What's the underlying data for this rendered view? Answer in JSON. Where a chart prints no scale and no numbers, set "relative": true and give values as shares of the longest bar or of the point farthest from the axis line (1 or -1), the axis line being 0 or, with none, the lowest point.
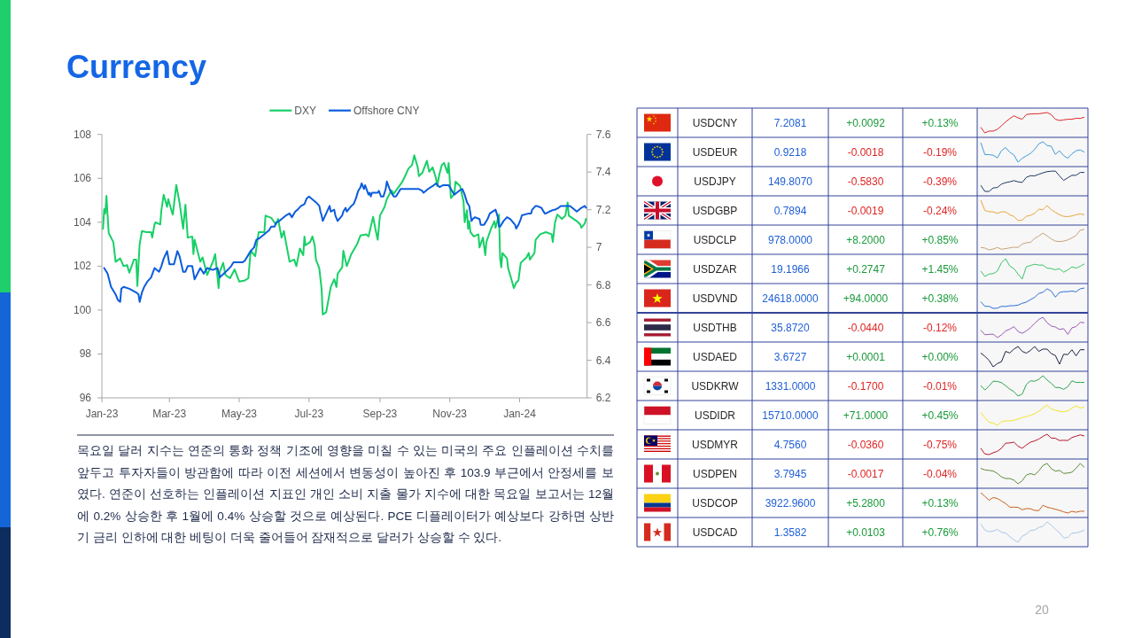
{
  "chart_data": [
    {
      "type": "line",
      "title": "Currency",
      "xlim": [
        "2023-01-01",
        "2024-02-29"
      ],
      "xticks": [
        {
          "value": "2023-01-01",
          "label": "Jan-23"
        },
        {
          "value": "2023-03-01",
          "label": "Mar-23"
        },
        {
          "value": "2023-05-01",
          "label": "May-23"
        },
        {
          "value": "2023-07-01",
          "label": "Jul-23"
        },
        {
          "value": "2023-09-01",
          "label": "Sep-23"
        },
        {
          "value": "2023-11-01",
          "label": "Nov-23"
        },
        {
          "value": "2024-01-01",
          "label": "Jan-24"
        }
      ],
      "ylim": [
        96,
        108
      ],
      "yticks": [
        96,
        98,
        100,
        102,
        104,
        106,
        108
      ],
      "y2lim": [
        6.2,
        7.6
      ],
      "y2ticks": [
        6.2,
        6.4,
        6.6,
        6.8,
        7,
        7.2,
        7.4,
        7.6
      ],
      "legend": "top",
      "series": [
        {
          "name": "DXY",
          "color": "#17d066",
          "x": [
            "2023-01-02",
            "2023-01-03",
            "2023-01-04",
            "2023-01-05",
            "2023-01-06",
            "2023-01-07",
            "2023-01-10",
            "2023-01-11",
            "2023-01-13",
            "2023-01-17",
            "2023-01-20",
            "2023-01-23",
            "2023-01-25",
            "2023-01-29",
            "2023-01-31",
            "2023-02-01",
            "2023-02-03",
            "2023-02-05",
            "2023-02-09",
            "2023-02-13",
            "2023-02-14",
            "2023-02-16",
            "2023-02-17",
            "2023-02-21",
            "2023-02-22",
            "2023-02-24",
            "2023-02-27",
            "2023-02-28",
            "2023-03-03",
            "2023-03-04",
            "2023-03-07",
            "2023-03-10",
            "2023-03-13",
            "2023-03-15",
            "2023-03-17",
            "2023-03-21",
            "2023-03-22",
            "2023-03-23",
            "2023-03-28",
            "2023-03-30",
            "2023-04-03",
            "2023-04-08",
            "2023-04-10",
            "2023-04-13",
            "2023-04-14",
            "2023-04-17",
            "2023-04-19",
            "2023-04-23",
            "2023-04-27",
            "2023-05-01",
            "2023-05-06",
            "2023-05-09",
            "2023-05-11",
            "2023-05-15",
            "2023-05-18",
            "2023-05-23",
            "2023-05-24",
            "2023-05-29",
            "2023-06-02",
            "2023-06-04",
            "2023-06-07",
            "2023-06-09",
            "2023-06-14",
            "2023-06-18",
            "2023-06-20",
            "2023-06-23",
            "2023-06-26",
            "2023-06-27",
            "2023-06-28",
            "2023-07-02",
            "2023-07-04",
            "2023-07-06",
            "2023-07-07",
            "2023-07-10",
            "2023-07-12",
            "2023-07-13",
            "2023-07-16",
            "2023-07-20",
            "2023-07-23",
            "2023-07-25",
            "2023-07-26",
            "2023-07-30",
            "2023-07-31",
            "2023-08-03",
            "2023-08-07",
            "2023-08-12",
            "2023-08-15",
            "2023-08-20",
            "2023-08-22",
            "2023-08-26",
            "2023-08-28",
            "2023-08-30",
            "2023-09-01",
            "2023-09-05",
            "2023-09-07",
            "2023-09-11",
            "2023-09-13",
            "2023-09-20",
            "2023-09-22",
            "2023-09-26",
            "2023-09-29",
            "2023-10-01",
            "2023-10-04",
            "2023-10-05",
            "2023-10-08",
            "2023-10-12",
            "2023-10-14",
            "2023-10-17",
            "2023-10-20",
            "2023-10-21",
            "2023-10-23",
            "2023-10-25",
            "2023-10-27",
            "2023-10-30",
            "2023-10-31",
            "2023-11-02",
            "2023-11-05",
            "2023-11-06",
            "2023-11-10",
            "2023-11-13",
            "2023-11-14",
            "2023-11-16",
            "2023-11-17",
            "2023-11-18",
            "2023-11-19",
            "2023-11-22",
            "2023-11-26",
            "2023-11-27",
            "2023-11-30",
            "2023-12-02",
            "2023-12-03",
            "2023-12-07",
            "2023-12-10",
            "2023-12-11",
            "2023-12-14",
            "2023-12-15",
            "2023-12-16",
            "2023-12-17",
            "2023-12-21",
            "2023-12-22",
            "2023-12-24",
            "2023-12-27",
            "2023-12-29",
            "2023-12-31",
            "2024-01-02",
            "2024-01-07",
            "2024-01-09",
            "2024-01-10",
            "2024-01-14",
            "2024-01-15",
            "2024-01-19",
            "2024-01-24",
            "2024-01-29",
            "2024-01-30",
            "2024-01-31",
            "2024-02-01",
            "2024-02-03",
            "2024-02-07",
            "2024-02-10",
            "2024-02-12",
            "2024-02-13",
            "2024-02-20",
            "2024-02-23",
            "2024-02-24",
            "2024-02-27",
            "2024-02-28"
          ],
          "values": [
            103.7,
            104.6,
            104.4,
            105.2,
            104.3,
            103.5,
            103.2,
            103.1,
            102.2,
            102.35,
            102.0,
            102.05,
            101.7,
            102.3,
            102.3,
            101.1,
            103.0,
            103.6,
            103.55,
            103.55,
            103.3,
            103.9,
            104.0,
            103.9,
            104.55,
            105.25,
            104.7,
            105.05,
            104.5,
            104.35,
            105.7,
            104.85,
            103.7,
            104.8,
            103.3,
            103.35,
            102.55,
            103.2,
            102.2,
            102.4,
            101.6,
            102.2,
            102.55,
            101.0,
            101.75,
            102.15,
            101.6,
            101.45,
            101.85,
            101.3,
            101.35,
            101.45,
            102.7,
            102.45,
            103.55,
            103.55,
            104.3,
            104.2,
            103.9,
            104.15,
            103.3,
            103.6,
            102.2,
            102.3,
            102.0,
            102.8,
            102.5,
            103.35,
            102.95,
            103.1,
            103.35,
            102.95,
            102.3,
            101.9,
            100.95,
            99.8,
            99.9,
            101.05,
            101.4,
            101.05,
            101.65,
            101.95,
            102.7,
            102.0,
            102.55,
            103.0,
            103.4,
            103.45,
            103.35,
            104.25,
            103.7,
            103.2,
            104.3,
            104.7,
            105.05,
            105.45,
            105.3,
            105.8,
            106.0,
            106.45,
            106.6,
            107.05,
            106.5,
            106.1,
            106.25,
            106.8,
            106.3,
            106.5,
            106.0,
            105.65,
            106.2,
            106.6,
            106.7,
            106.25,
            106.7,
            105.1,
            105.3,
            105.85,
            105.65,
            104.95,
            104.0,
            104.55,
            103.7,
            104.05,
            103.55,
            103.35,
            103.45,
            102.85,
            103.3,
            102.5,
            103.1,
            103.7,
            104.05,
            103.75,
            104.35,
            102.35,
            101.95,
            102.6,
            102.35,
            101.9,
            101.55,
            101.0,
            101.25,
            101.35,
            102.15,
            102.4,
            102.6,
            102.3,
            102.6,
            103.2,
            103.45,
            103.55,
            103.45,
            103.1,
            103.55,
            104.0,
            104.35,
            104.15,
            104.3,
            104.9,
            104.3,
            104.05,
            103.9,
            103.75,
            103.95,
            104.15
          ]
        },
        {
          "name": "Offshore CNY",
          "color": "#0b5cdd",
          "axis": "y2",
          "x": [
            "2023-01-03",
            "2023-01-06",
            "2023-01-09",
            "2023-01-13",
            "2023-01-15",
            "2023-01-17",
            "2023-01-18",
            "2023-01-20",
            "2023-01-25",
            "2023-01-31",
            "2023-02-02",
            "2023-02-03",
            "2023-02-05",
            "2023-02-07",
            "2023-02-10",
            "2023-02-13",
            "2023-02-16",
            "2023-02-20",
            "2023-02-22",
            "2023-02-24",
            "2023-02-27",
            "2023-03-01",
            "2023-03-05",
            "2023-03-08",
            "2023-03-10",
            "2023-03-13",
            "2023-03-15",
            "2023-03-17",
            "2023-03-21",
            "2023-03-23",
            "2023-03-28",
            "2023-03-31",
            "2023-04-03",
            "2023-04-08",
            "2023-04-12",
            "2023-04-14",
            "2023-04-21",
            "2023-04-24",
            "2023-04-26",
            "2023-05-04",
            "2023-05-06",
            "2023-05-09",
            "2023-05-11",
            "2023-05-14",
            "2023-05-16",
            "2023-05-19",
            "2023-05-23",
            "2023-05-27",
            "2023-05-29",
            "2023-06-01",
            "2023-06-02",
            "2023-06-05",
            "2023-06-07",
            "2023-06-11",
            "2023-06-14",
            "2023-06-16",
            "2023-06-19",
            "2023-06-21",
            "2023-06-24",
            "2023-06-27",
            "2023-06-29",
            "2023-07-01",
            "2023-07-03",
            "2023-07-07",
            "2023-07-10",
            "2023-07-11",
            "2023-07-12",
            "2023-07-13",
            "2023-07-16",
            "2023-07-19",
            "2023-07-20",
            "2023-07-23",
            "2023-07-24",
            "2023-07-26",
            "2023-07-30",
            "2023-07-31",
            "2023-08-02",
            "2023-08-03",
            "2023-08-07",
            "2023-08-09",
            "2023-08-11",
            "2023-08-12",
            "2023-08-13",
            "2023-08-15",
            "2023-08-16",
            "2023-08-18",
            "2023-08-19",
            "2023-08-22",
            "2023-08-23",
            "2023-08-24",
            "2023-08-25",
            "2023-08-30",
            "2023-08-31",
            "2023-09-02",
            "2023-09-04",
            "2023-09-06",
            "2023-09-07",
            "2023-09-10",
            "2023-09-13",
            "2023-09-15",
            "2023-09-19",
            "2023-09-25",
            "2023-10-05",
            "2023-10-08",
            "2023-10-09",
            "2023-10-11",
            "2023-10-13",
            "2023-10-18",
            "2023-10-20",
            "2023-10-23",
            "2023-10-26",
            "2023-10-29",
            "2023-10-31",
            "2023-11-03",
            "2023-11-05",
            "2023-11-09",
            "2023-11-12",
            "2023-11-14",
            "2023-11-15",
            "2023-11-16",
            "2023-11-18",
            "2023-11-19",
            "2023-11-20",
            "2023-11-21",
            "2023-11-23",
            "2023-11-27",
            "2023-11-28",
            "2023-11-29",
            "2023-12-01",
            "2023-12-04",
            "2023-12-06",
            "2023-12-11",
            "2023-12-13",
            "2023-12-14",
            "2023-12-15",
            "2023-12-18",
            "2023-12-21",
            "2023-12-24",
            "2023-12-28",
            "2023-12-29",
            "2023-12-31",
            "2024-01-02",
            "2024-01-03",
            "2024-01-09",
            "2024-01-11",
            "2024-01-12",
            "2024-01-15",
            "2024-01-16",
            "2024-01-20",
            "2024-01-23",
            "2024-01-24",
            "2024-01-27",
            "2024-01-31",
            "2024-02-01",
            "2024-02-04",
            "2024-02-06",
            "2024-02-14",
            "2024-02-16",
            "2024-02-20",
            "2024-02-24",
            "2024-02-27",
            "2024-02-28"
          ],
          "values": [
            6.89,
            6.86,
            6.79,
            6.75,
            6.72,
            6.71,
            6.78,
            6.79,
            6.78,
            6.76,
            6.75,
            6.71,
            6.76,
            6.79,
            6.82,
            6.84,
            6.89,
            6.87,
            6.9,
            6.94,
            6.98,
            6.91,
            6.91,
            6.98,
            6.95,
            6.87,
            6.87,
            6.9,
            6.9,
            6.83,
            6.89,
            6.86,
            6.89,
            6.88,
            6.89,
            6.84,
            6.88,
            6.9,
            6.92,
            6.92,
            6.93,
            6.96,
            6.98,
            7.0,
            7.04,
            7.05,
            7.07,
            7.09,
            7.11,
            7.11,
            7.13,
            7.14,
            7.15,
            7.17,
            7.18,
            7.16,
            7.19,
            7.2,
            7.22,
            7.23,
            7.26,
            7.27,
            7.26,
            7.24,
            7.22,
            7.19,
            7.17,
            7.14,
            7.18,
            7.22,
            7.19,
            7.2,
            7.17,
            7.14,
            7.17,
            7.19,
            7.21,
            7.19,
            7.22,
            7.23,
            7.26,
            7.28,
            7.3,
            7.32,
            7.34,
            7.31,
            7.33,
            7.28,
            7.29,
            7.27,
            7.29,
            7.29,
            7.3,
            7.27,
            7.27,
            7.31,
            7.35,
            7.3,
            7.27,
            7.27,
            7.31,
            7.31,
            7.31,
            7.3,
            7.29,
            7.3,
            7.31,
            7.33,
            7.34,
            7.32,
            7.33,
            7.33,
            7.33,
            7.3,
            7.28,
            7.3,
            7.31,
            7.28,
            7.26,
            7.24,
            7.22,
            7.18,
            7.14,
            7.15,
            7.16,
            7.15,
            7.12,
            7.12,
            7.12,
            7.15,
            7.18,
            7.2,
            7.16,
            7.11,
            7.11,
            7.14,
            7.16,
            7.15,
            7.12,
            7.1,
            7.12,
            7.15,
            7.17,
            7.18,
            7.18,
            7.2,
            7.22,
            7.22,
            7.21,
            7.18,
            7.18,
            7.19,
            7.2,
            7.2,
            7.21,
            7.22,
            7.22,
            7.21,
            7.19,
            7.21,
            7.22,
            7.21
          ]
        }
      ],
      "annotations": [
        "목요일 달러 지수는 연준의 통화 정책 기조에 영향을 미칠 수 있는 미국의 주요 인플레이션 수치를 앞두고 투자자들이 방관함에 따라 이전 세션에서 변동성이 높아진 후 103.9 부근에서 안정세를 보였다. 연준이 선호하는 인플레이션 지표인 개인 소비 지출 물가 지수에 대한 목요일 보고서는 12월에 0.2% 상승한 후 1월에 0.4% 상승할 것으로 예상된다. PCE 디플레이터가 예상보다 강하면 상반기 금리 인하에 대한 베팅이 더욱 줄어들어 잠재적으로 달러가 상승할 수 있다.",
        "20"
      ]
    },
    {
      "type": "other",
      "categories": [
        "USDCNY",
        "USDEUR",
        "USDJPY",
        "USDGBP",
        "USDCLP",
        "USDZAR",
        "USDVND",
        "USDTHB",
        "USDAED",
        "USDKRW",
        "USDIDR",
        "USDMYR",
        "USDPEN",
        "USDCOP",
        "USDCAD"
      ],
      "series": [
        {
          "color": "#1f5fd6",
          "values": [
            7.2081,
            0.9218,
            149.807,
            0.7894,
            978,
            19.1966,
            24618,
            35.872,
            3.6727,
            1331,
            15710,
            4.756,
            3.7945,
            3922.96,
            1.3582
          ],
          "value_labels": [
            "7.2081",
            "0.9218",
            "149.8070",
            "0.7894",
            "978.0000",
            "19.1966",
            "24618.0000",
            "35.8720",
            "3.6727",
            "1331.0000",
            "15710.0000",
            "4.7560",
            "3.7945",
            "3922.9600",
            "1.3582"
          ]
        },
        {
          "values": [
            0.0092,
            -0.0018,
            -0.583,
            -0.0019,
            8.2,
            0.2747,
            94,
            -0.044,
            0.0001,
            -0.17,
            71,
            -0.036,
            -0.0017,
            5.28,
            0.0103
          ],
          "value_labels": [
            "+0.0092",
            "-0.0018",
            "-0.5830",
            "-0.0019",
            "+8.2000",
            "+0.2747",
            "+94.0000",
            "-0.0440",
            "+0.0001",
            "-0.1700",
            "+71.0000",
            "-0.0360",
            "-0.0017",
            "+5.2800",
            "+0.0103"
          ],
          "colors": [
            "#1a9a3a",
            "#e02424",
            "#e02424",
            "#e02424",
            "#1a9a3a",
            "#1a9a3a",
            "#1a9a3a",
            "#e02424",
            "#1a9a3a",
            "#e02424",
            "#1a9a3a",
            "#e02424",
            "#e02424",
            "#1a9a3a",
            "#1a9a3a"
          ]
        },
        {
          "values": [
            0.13,
            -0.19,
            -0.39,
            -0.24,
            0.85,
            1.45,
            0.38,
            -0.12,
            0,
            -0.01,
            0.45,
            -0.75,
            -0.04,
            0.13,
            0.76
          ],
          "value_labels": [
            "+0.13%",
            "-0.19%",
            "-0.39%",
            "-0.24%",
            "+0.85%",
            "+1.45%",
            "+0.38%",
            "-0.12%",
            "+0.00%",
            "-0.01%",
            "+0.45%",
            "-0.75%",
            "-0.04%",
            "+0.13%",
            "+0.76%"
          ],
          "colors": [
            "#1a9a3a",
            "#e02424",
            "#e02424",
            "#e02424",
            "#1a9a3a",
            "#1a9a3a",
            "#1a9a3a",
            "#e02424",
            "#1a9a3a",
            "#e02424",
            "#1a9a3a",
            "#e02424",
            "#e02424",
            "#1a9a3a",
            "#1a9a3a"
          ]
        }
      ]
    },
    {
      "type": "line",
      "relative": true,
      "categories": [
        null,
        null,
        null,
        null,
        null,
        null,
        null,
        null,
        null,
        null,
        null,
        null,
        null,
        null,
        null,
        null,
        null,
        null,
        null,
        null,
        null,
        null,
        null,
        null,
        null,
        null
      ],
      "series": [
        {
          "color": "#e0262b",
          "values": [
            0.28,
            0,
            0.09,
            0.09,
            0.17,
            0.35,
            0.54,
            0.7,
            0.84,
            0.74,
            0.67,
            0.9,
            0.93,
            0.94,
            0.94,
            0.97,
            1,
            0.9,
            0.67,
            0.61,
            0.64,
            0.67,
            0.67,
            0.72,
            0.71,
            0.77
          ]
        }
      ]
    },
    {
      "type": "line",
      "relative": true,
      "categories": [
        null,
        null,
        null,
        null,
        null,
        null,
        null,
        null,
        null,
        null,
        null,
        null,
        null,
        null,
        null,
        null,
        null,
        null,
        null,
        null,
        null,
        null,
        null,
        null,
        null,
        null
      ],
      "series": [
        {
          "color": "#3d9bd9",
          "values": [
            0.96,
            0.37,
            0.37,
            0.34,
            0.21,
            0.56,
            0.72,
            0.49,
            0.35,
            0,
            0.19,
            0.31,
            0.43,
            0.62,
            0.9,
            1,
            0.82,
            0.78,
            0.38,
            0.56,
            0.32,
            0.19,
            0.41,
            0.56,
            0.6,
            0.49
          ]
        }
      ]
    },
    {
      "type": "line",
      "relative": true,
      "categories": [
        null,
        null,
        null,
        null,
        null,
        null,
        null,
        null,
        null,
        null,
        null,
        null,
        null,
        null,
        null,
        null,
        null,
        null,
        null,
        null,
        null,
        null,
        null,
        null,
        null,
        null
      ],
      "series": [
        {
          "color": "#1f3864",
          "values": [
            0.3,
            0,
            0,
            0.17,
            0.19,
            0.36,
            0.43,
            0.47,
            0.53,
            0.47,
            0.44,
            0.69,
            0.77,
            0.76,
            0.84,
            0.91,
            0.97,
            0.99,
            1,
            0.76,
            0.54,
            0.67,
            0.79,
            0.79,
            0.93,
            0.93
          ]
        }
      ]
    },
    {
      "type": "line",
      "relative": true,
      "categories": [
        null,
        null,
        null,
        null,
        null,
        null,
        null,
        null,
        null,
        null,
        null,
        null,
        null,
        null,
        null,
        null,
        null,
        null,
        null,
        null,
        null,
        null,
        null,
        null,
        null,
        null
      ],
      "series": [
        {
          "color": "#eaa43c",
          "values": [
            1,
            0.5,
            0.44,
            0.43,
            0.36,
            0.43,
            0.43,
            0.29,
            0.21,
            0,
            0.03,
            0.21,
            0.26,
            0.36,
            0.56,
            0.54,
            0.74,
            0.54,
            0.41,
            0.29,
            0.21,
            0.2,
            0.23,
            0.29,
            0.33,
            0.29
          ]
        }
      ]
    },
    {
      "type": "line",
      "relative": true,
      "categories": [
        null,
        null,
        null,
        null,
        null,
        null,
        null,
        null,
        null,
        null,
        null,
        null,
        null,
        null,
        null,
        null,
        null,
        null,
        null,
        null,
        null,
        null,
        null,
        null,
        null,
        null
      ],
      "series": [
        {
          "color": "#c9a07a",
          "values": [
            0.12,
            0.09,
            0,
            0.04,
            0.12,
            0.03,
            0.06,
            0.1,
            0.13,
            0.12,
            0.29,
            0.35,
            0.37,
            0.56,
            0.68,
            0.82,
            0.69,
            0.54,
            0.43,
            0.41,
            0.43,
            0.49,
            0.59,
            0.71,
            0.97,
            1
          ]
        }
      ]
    },
    {
      "type": "line",
      "relative": true,
      "categories": [
        null,
        null,
        null,
        null,
        null,
        null,
        null,
        null,
        null,
        null,
        null,
        null,
        null,
        null,
        null,
        null,
        null,
        null,
        null,
        null,
        null,
        null,
        null,
        null,
        null,
        null
      ],
      "series": [
        {
          "color": "#3cc46a",
          "values": [
            0.4,
            0.13,
            0.25,
            0.27,
            0.39,
            0.81,
            1,
            0.64,
            0.52,
            0.25,
            0,
            0.61,
            0.67,
            0.73,
            0.69,
            0.69,
            0.54,
            0.52,
            0.46,
            0.51,
            0.34,
            0.45,
            0.6,
            0.54,
            0.63,
            0.75
          ]
        }
      ]
    },
    {
      "type": "line",
      "relative": true,
      "categories": [
        null,
        null,
        null,
        null,
        null,
        null,
        null,
        null,
        null,
        null,
        null,
        null,
        null,
        null,
        null,
        null,
        null,
        null,
        null,
        null,
        null,
        null,
        null,
        null,
        null,
        null
      ],
      "series": [
        {
          "color": "#2f6fd6",
          "values": [
            0.33,
            0.1,
            0.1,
            0,
            0.01,
            0.1,
            0.09,
            0.13,
            0.13,
            0.16,
            0.25,
            0.31,
            0.43,
            0.54,
            0.73,
            0.79,
            0.96,
            0.85,
            0.55,
            0.78,
            0.82,
            0.82,
            0.85,
            0.81,
            0.96,
            1
          ]
        }
      ]
    },
    {
      "type": "line",
      "relative": true,
      "categories": [
        null,
        null,
        null,
        null,
        null,
        null,
        null,
        null,
        null,
        null,
        null,
        null,
        null,
        null,
        null,
        null,
        null,
        null,
        null,
        null,
        null,
        null,
        null,
        null,
        null,
        null
      ],
      "series": [
        {
          "color": "#9b59b6",
          "values": [
            0.37,
            0.14,
            0.16,
            0.17,
            0,
            0.13,
            0.33,
            0.41,
            0.54,
            0.3,
            0.21,
            0.33,
            0.49,
            0.7,
            0.89,
            1,
            0.73,
            0.57,
            0.52,
            0.4,
            0.44,
            0.16,
            0.48,
            0.54,
            0.75,
            0.73
          ]
        }
      ]
    },
    {
      "type": "line",
      "relative": true,
      "categories": [
        null,
        null,
        null,
        null,
        null,
        null,
        null,
        null,
        null,
        null,
        null,
        null,
        null,
        null,
        null,
        null,
        null,
        null,
        null,
        null,
        null,
        null,
        null,
        null,
        null,
        null
      ],
      "series": [
        {
          "color": "#1b2445",
          "values": [
            0.68,
            0.52,
            0.32,
            0,
            0.16,
            0.25,
            0.76,
            0.68,
            0.87,
            1,
            0.76,
            0.67,
            0.81,
            1,
            0.76,
            0.87,
            0.87,
            0.65,
            0.56,
            0.13,
            0.62,
            0.6,
            0.84,
            0.54,
            0.84,
            0.84
          ]
        }
      ]
    },
    {
      "type": "line",
      "relative": true,
      "categories": [
        null,
        null,
        null,
        null,
        null,
        null,
        null,
        null,
        null,
        null,
        null,
        null,
        null,
        null,
        null,
        null,
        null,
        null,
        null,
        null,
        null,
        null,
        null,
        null,
        null,
        null
      ],
      "series": [
        {
          "color": "#2ca44e",
          "values": [
            0.52,
            0.3,
            0.49,
            0.73,
            0.72,
            0.66,
            0.51,
            0.34,
            0.22,
            0,
            0.1,
            0.57,
            0.75,
            0.73,
            0.82,
            1,
            0.79,
            0.63,
            0.42,
            0.42,
            0.33,
            0.46,
            0.75,
            0.67,
            0.67,
            0.67
          ]
        }
      ]
    },
    {
      "type": "line",
      "relative": true,
      "categories": [
        null,
        null,
        null,
        null,
        null,
        null,
        null,
        null,
        null,
        null,
        null,
        null,
        null,
        null,
        null,
        null,
        null,
        null,
        null,
        null,
        null,
        null,
        null,
        null,
        null,
        null
      ],
      "series": [
        {
          "color": "#f2e62a",
          "values": [
            0.62,
            0.38,
            0.15,
            0.11,
            0,
            0.18,
            0.22,
            0.22,
            0.25,
            0.31,
            0.38,
            0.43,
            0.49,
            0.57,
            0.69,
            0.85,
            1,
            0.8,
            0.74,
            0.69,
            0.66,
            0.71,
            0.85,
            0.95,
            0.85,
            0.89
          ]
        }
      ]
    },
    {
      "type": "line",
      "relative": true,
      "categories": [
        null,
        null,
        null,
        null,
        null,
        null,
        null,
        null,
        null,
        null,
        null,
        null,
        null,
        null,
        null,
        null,
        null,
        null,
        null,
        null,
        null,
        null,
        null,
        null,
        null,
        null
      ],
      "series": [
        {
          "color": "#b5172d",
          "values": [
            0.31,
            0.03,
            0,
            0.09,
            0.16,
            0.31,
            0.56,
            0.57,
            0.61,
            0.41,
            0.31,
            0.47,
            0.61,
            0.67,
            0.76,
            0.89,
            1,
            0.81,
            0.8,
            0.69,
            0.7,
            0.69,
            0.84,
            0.9,
            0.97,
            0.91
          ]
        }
      ]
    },
    {
      "type": "line",
      "relative": true,
      "categories": [
        null,
        null,
        null,
        null,
        null,
        null,
        null,
        null,
        null,
        null,
        null,
        null,
        null,
        null,
        null,
        null,
        null,
        null,
        null,
        null,
        null,
        null,
        null,
        null,
        null,
        null
      ],
      "series": [
        {
          "color": "#5e8a3c",
          "values": [
            0.76,
            0.68,
            0.66,
            0.63,
            0.51,
            0.34,
            0.26,
            0.26,
            0.18,
            0,
            0.15,
            0.43,
            0.5,
            0.44,
            0.63,
            0.9,
            1,
            0.75,
            0.62,
            0.66,
            0.51,
            0.53,
            0.57,
            0.76,
            1,
            0.81
          ]
        }
      ]
    },
    {
      "type": "line",
      "relative": true,
      "categories": [
        null,
        null,
        null,
        null,
        null,
        null,
        null,
        null,
        null,
        null,
        null,
        null,
        null,
        null,
        null,
        null,
        null,
        null,
        null,
        null,
        null,
        null,
        null,
        null,
        null,
        null
      ],
      "series": [
        {
          "color": "#c8601c",
          "values": [
            1,
            0.82,
            0.63,
            0.76,
            0.72,
            0.59,
            0.47,
            0.29,
            0.29,
            0.28,
            0.16,
            0.22,
            0.21,
            0.13,
            0.12,
            0.38,
            0.29,
            0.24,
            0.19,
            0.13,
            0.06,
            0,
            0.09,
            0.04,
            0.09,
            0.09
          ]
        }
      ]
    },
    {
      "type": "line",
      "relative": true,
      "categories": [
        null,
        null,
        null,
        null,
        null,
        null,
        null,
        null,
        null,
        null,
        null,
        null,
        null,
        null,
        null,
        null,
        null,
        null,
        null,
        null,
        null,
        null,
        null,
        null,
        null,
        null
      ],
      "series": [
        {
          "color": "#a9c7e8",
          "values": [
            0.9,
            0.6,
            0.52,
            0.55,
            0.63,
            0.49,
            0.46,
            0.28,
            0.12,
            0,
            0.3,
            0.4,
            0.58,
            0.6,
            0.73,
            0.78,
            1,
            0.85,
            0.64,
            0.48,
            0.21,
            0.24,
            0.45,
            0.46,
            0.52,
            0.6
          ]
        }
      ]
    }
  ]
}
